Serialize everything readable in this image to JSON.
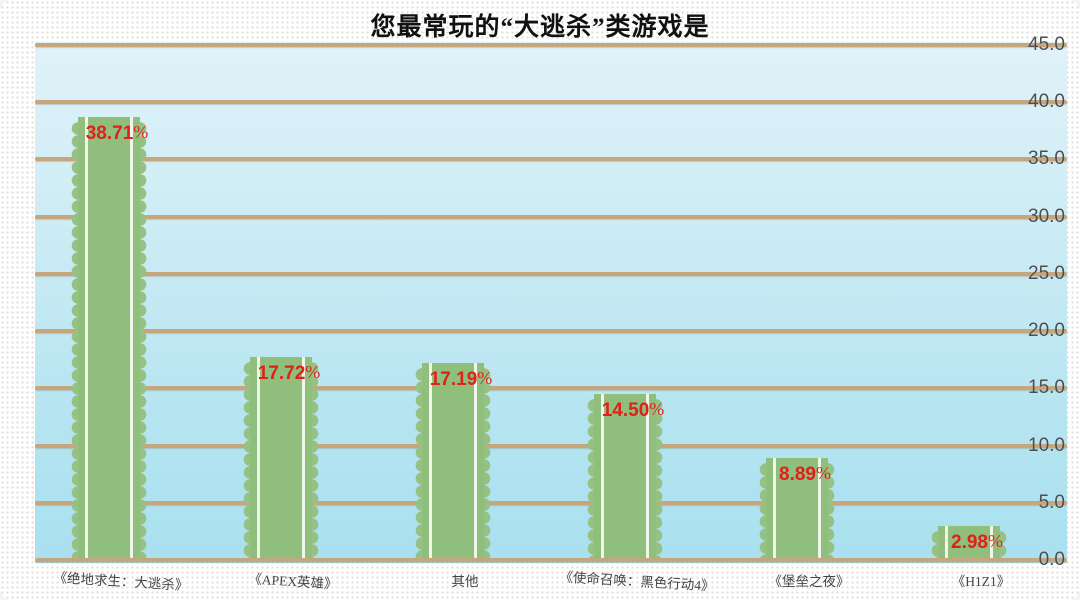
{
  "chart_data": {
    "type": "bar",
    "title": "您最常玩的“大逃杀”类游戏是",
    "categories": [
      "《绝地求生：大逃杀》",
      "《APEX英雄》",
      "其他",
      "《使命召唤：黑色行动4》",
      "《堡垒之夜》",
      "《H1Z1》"
    ],
    "values": [
      38.71,
      17.72,
      17.19,
      14.5,
      8.89,
      2.98
    ],
    "value_labels": [
      "38.71%",
      "17.72%",
      "17.19%",
      "14.50%",
      "8.89%",
      "2.98%"
    ],
    "xlabel": "",
    "ylabel": "",
    "ylim": [
      0,
      45
    ],
    "ytick_step": 5,
    "ytick_labels": [
      "0.0",
      "5.0",
      "10.0",
      "15.0",
      "20.0",
      "25.0",
      "30.0",
      "35.0",
      "40.0",
      "45.0"
    ],
    "grid": true,
    "legend_position": "none",
    "colors": {
      "bar_fill": "#8fbe7d",
      "bar_bump_fill": "#95c283",
      "bar_stripe": "#f0f6ea",
      "value_label": "#e0211a",
      "gridline": "#c8a67c",
      "plot_bg_top": "#e0f2f9",
      "plot_bg_bottom": "#a9e0ef",
      "tick_text": "#4d4d4d",
      "category_text": "#444444",
      "title_text": "#111111"
    }
  }
}
